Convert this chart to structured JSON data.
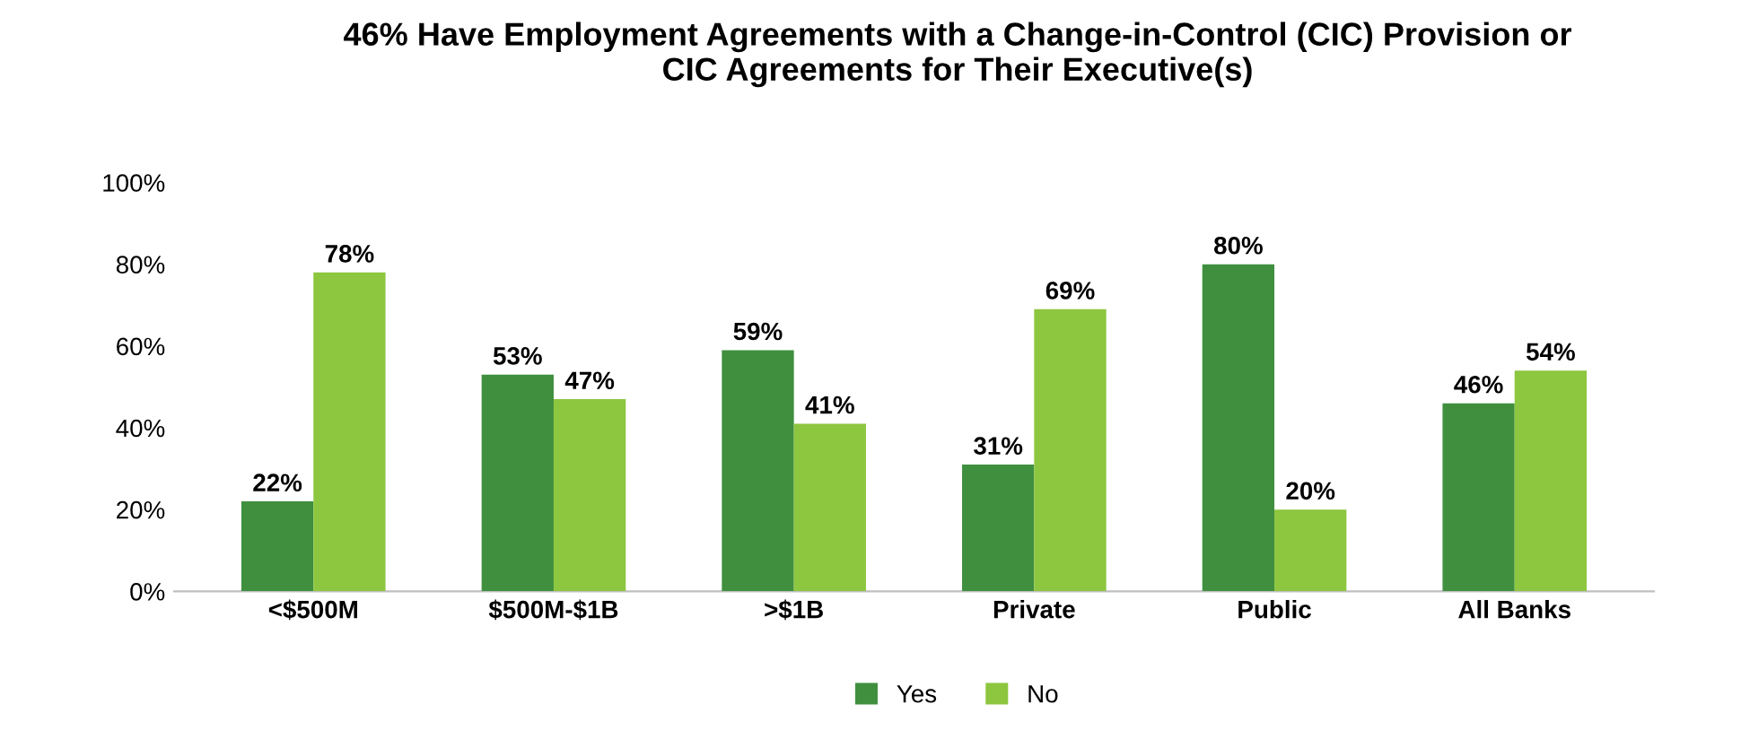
{
  "chart_data": {
    "type": "bar",
    "title": "46% Have Employment Agreements with a Change-in-Control (CIC) Provision or\nCIC Agreements for Their Executive(s)",
    "categories": [
      "<$500M",
      "$500M-$1B",
      ">$1B",
      "Private",
      "Public",
      "All Banks"
    ],
    "series": [
      {
        "name": "Yes",
        "color": "#3f8f3f",
        "values": [
          22,
          53,
          59,
          31,
          80,
          46
        ],
        "value_labels": [
          "22%",
          "53%",
          "59%",
          "31%",
          "80%",
          "46%"
        ]
      },
      {
        "name": "No",
        "color": "#8dc63f",
        "values": [
          78,
          47,
          41,
          69,
          20,
          54
        ],
        "value_labels": [
          "78%",
          "47%",
          "41%",
          "69%",
          "20%",
          "54%"
        ]
      }
    ],
    "ylim": [
      0,
      100
    ],
    "yticks": [
      {
        "value": 0,
        "label": "0%"
      },
      {
        "value": 20,
        "label": "20%"
      },
      {
        "value": 40,
        "label": "40%"
      },
      {
        "value": 60,
        "label": "60%"
      },
      {
        "value": 80,
        "label": "80%"
      },
      {
        "value": 100,
        "label": "100%"
      }
    ],
    "grid": false,
    "legend": "bottom"
  }
}
